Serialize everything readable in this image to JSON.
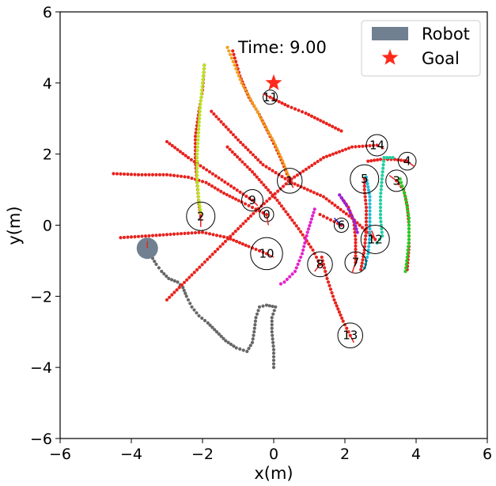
{
  "chart_data": {
    "type": "scatter",
    "xlabel": "x(m)",
    "ylabel": "y(m)",
    "xlim": [
      -6,
      6
    ],
    "ylim": [
      -6,
      6
    ],
    "xticks": [
      -6,
      -4,
      -2,
      0,
      2,
      4,
      6
    ],
    "yticks": [
      -6,
      -4,
      -2,
      0,
      2,
      4,
      6
    ],
    "tick_labels_x": [
      "−6",
      "−4",
      "−2",
      "0",
      "2",
      "4",
      "6"
    ],
    "tick_labels_y": [
      "−6",
      "−4",
      "−2",
      "0",
      "2",
      "4",
      "6"
    ],
    "time_label": "Time: 9.00",
    "time_label_pos": [
      -1.0,
      5.0
    ],
    "legend": {
      "placement": "upper-right",
      "entries": [
        {
          "label": "Robot",
          "marker": "patch",
          "color": "#708090"
        },
        {
          "label": "Goal",
          "marker": "star",
          "color": "#ff2a1a"
        }
      ]
    },
    "goal": {
      "x": 0.0,
      "y": 4.0,
      "color": "#ff2a1a"
    },
    "robot": {
      "x": -3.55,
      "y": -0.65,
      "radius": 0.3,
      "color": "#708090",
      "heading": [
        0.0,
        0.2
      ],
      "path_color": "#666666",
      "path": [
        [
          0,
          -4
        ],
        [
          0,
          -3.5
        ],
        [
          -0.05,
          -3
        ],
        [
          -0.05,
          -2.6
        ],
        [
          0.05,
          -2.3
        ],
        [
          -0.2,
          -2.25
        ],
        [
          -0.4,
          -2.3
        ],
        [
          -0.5,
          -2.6
        ],
        [
          -0.55,
          -3.0
        ],
        [
          -0.6,
          -3.3
        ],
        [
          -0.75,
          -3.55
        ],
        [
          -1.05,
          -3.45
        ],
        [
          -1.35,
          -3.25
        ],
        [
          -1.6,
          -3.0
        ],
        [
          -1.85,
          -2.75
        ],
        [
          -2.1,
          -2.55
        ],
        [
          -2.3,
          -2.3
        ],
        [
          -2.45,
          -2.0
        ],
        [
          -2.55,
          -1.75
        ],
        [
          -2.7,
          -1.6
        ],
        [
          -2.95,
          -1.5
        ],
        [
          -3.15,
          -1.3
        ],
        [
          -3.3,
          -1.1
        ],
        [
          -3.45,
          -0.85
        ]
      ]
    },
    "agents": [
      {
        "id": "0",
        "x": -0.2,
        "y": 0.3,
        "radius": 0.2,
        "color": "#e8231e",
        "heading": [
          0.05,
          -0.3
        ],
        "path": [
          [
            -4.5,
            1.45
          ],
          [
            -3.8,
            1.42
          ],
          [
            -3.0,
            1.42
          ],
          [
            -2.4,
            1.35
          ],
          [
            -1.9,
            1.2
          ],
          [
            -1.4,
            0.9
          ],
          [
            -0.9,
            0.65
          ],
          [
            -0.5,
            0.45
          ],
          [
            -0.2,
            0.3
          ]
        ]
      },
      {
        "id": "1",
        "x": 0.45,
        "y": 1.25,
        "radius": 0.35,
        "color": "#e8231e",
        "heading": [
          0.1,
          -0.2
        ],
        "path": [
          [
            -1.15,
            4.9
          ],
          [
            -0.95,
            4.2
          ],
          [
            -0.7,
            3.6
          ],
          [
            -0.4,
            3.1
          ],
          [
            -0.15,
            2.6
          ],
          [
            0.05,
            2.2
          ],
          [
            0.25,
            1.75
          ],
          [
            0.45,
            1.25
          ]
        ]
      },
      {
        "id": "2",
        "x": -2.05,
        "y": 0.25,
        "radius": 0.4,
        "color": "#e8231e",
        "heading": [
          0.0,
          -0.3
        ],
        "path": [
          [
            -1.95,
            4.5
          ],
          [
            -2.0,
            3.8
          ],
          [
            -2.1,
            3.2
          ],
          [
            -2.2,
            2.5
          ],
          [
            -2.2,
            1.8
          ],
          [
            -2.15,
            1.2
          ],
          [
            -2.1,
            0.6
          ],
          [
            -2.05,
            0.25
          ]
        ]
      },
      {
        "id": "3",
        "x": 3.45,
        "y": 1.25,
        "radius": 0.3,
        "color": "#e8231e",
        "heading": [
          -0.2,
          0.15
        ],
        "path": [
          [
            3.75,
            -1.25
          ],
          [
            3.8,
            -0.6
          ],
          [
            3.8,
            0.0
          ],
          [
            3.75,
            0.55
          ],
          [
            3.65,
            1.0
          ],
          [
            3.45,
            1.25
          ]
        ]
      },
      {
        "id": "4",
        "x": 3.75,
        "y": 1.8,
        "radius": 0.25,
        "color": "#e8231e",
        "heading": [
          0.2,
          -0.15
        ],
        "path": [
          [
            2.65,
            1.8
          ],
          [
            3.0,
            1.85
          ],
          [
            3.4,
            1.85
          ],
          [
            3.75,
            1.8
          ]
        ]
      },
      {
        "id": "5",
        "x": 2.55,
        "y": 1.3,
        "radius": 0.4,
        "color": "#e8231e",
        "heading": [
          0.0,
          -0.25
        ],
        "path": [
          [
            2.45,
            -1.25
          ],
          [
            2.55,
            -0.7
          ],
          [
            2.6,
            -0.1
          ],
          [
            2.6,
            0.5
          ],
          [
            2.55,
            1.0
          ],
          [
            2.55,
            1.3
          ]
        ]
      },
      {
        "id": "6",
        "x": 1.9,
        "y": 0.0,
        "radius": 0.2,
        "color": "#1a1acc",
        "heading": [
          -0.2,
          0.2
        ],
        "path": [
          [
            1.3,
            0.3
          ],
          [
            1.6,
            0.15
          ],
          [
            1.9,
            0.0
          ]
        ]
      },
      {
        "id": "7",
        "x": 2.3,
        "y": -1.05,
        "radius": 0.3,
        "color": "#e8231e",
        "heading": [
          -0.1,
          -0.3
        ],
        "path": [
          [
            1.85,
            0.85
          ],
          [
            2.1,
            0.5
          ],
          [
            2.25,
            0.1
          ],
          [
            2.3,
            -0.4
          ],
          [
            2.3,
            -1.05
          ]
        ]
      },
      {
        "id": "8",
        "x": 1.3,
        "y": -1.1,
        "radius": 0.35,
        "color": "#e8231e",
        "heading": [
          -0.15,
          -0.2
        ],
        "path": [
          [
            -1.3,
            2.2
          ],
          [
            -0.6,
            1.5
          ],
          [
            0.1,
            0.7
          ],
          [
            0.7,
            -0.1
          ],
          [
            1.1,
            -0.7
          ],
          [
            1.3,
            -1.1
          ]
        ]
      },
      {
        "id": "9",
        "x": -0.6,
        "y": 0.7,
        "radius": 0.3,
        "color": "#e8231e",
        "heading": [
          0.15,
          -0.15
        ],
        "path": [
          [
            -3.0,
            2.35
          ],
          [
            -2.4,
            1.9
          ],
          [
            -1.8,
            1.5
          ],
          [
            -1.2,
            1.1
          ],
          [
            -0.6,
            0.7
          ]
        ]
      },
      {
        "id": "10",
        "x": -0.2,
        "y": -0.8,
        "radius": 0.45,
        "color": "#e8231e",
        "heading": [
          0.2,
          -0.1
        ],
        "path": [
          [
            -4.3,
            -0.35
          ],
          [
            -3.5,
            -0.3
          ],
          [
            -2.8,
            -0.25
          ],
          [
            -2.0,
            -0.2
          ],
          [
            -1.3,
            -0.35
          ],
          [
            -0.7,
            -0.6
          ],
          [
            -0.2,
            -0.8
          ]
        ]
      },
      {
        "id": "11",
        "x": -0.1,
        "y": 3.6,
        "radius": 0.2,
        "color": "#e8231e",
        "heading": [
          -0.2,
          0.1
        ],
        "path": [
          [
            1.9,
            2.65
          ],
          [
            1.4,
            2.9
          ],
          [
            0.9,
            3.15
          ],
          [
            0.4,
            3.35
          ],
          [
            -0.1,
            3.6
          ]
        ]
      },
      {
        "id": "12",
        "x": 2.85,
        "y": -0.4,
        "radius": 0.4,
        "color": "#e8231e",
        "heading": [
          -0.1,
          0.25
        ],
        "path": [
          [
            -1.75,
            3.2
          ],
          [
            -1.0,
            2.4
          ],
          [
            -0.3,
            1.7
          ],
          [
            0.5,
            1.2
          ],
          [
            1.4,
            0.8
          ],
          [
            2.2,
            0.2
          ],
          [
            2.85,
            -0.4
          ]
        ]
      },
      {
        "id": "13",
        "x": 2.15,
        "y": -3.1,
        "radius": 0.35,
        "color": "#e8231e",
        "heading": [
          0.1,
          -0.2
        ],
        "path": [
          [
            1.35,
            -0.9
          ],
          [
            1.5,
            -1.5
          ],
          [
            1.7,
            -2.1
          ],
          [
            1.95,
            -2.7
          ],
          [
            2.15,
            -3.1
          ]
        ]
      },
      {
        "id": "14",
        "x": 2.9,
        "y": 2.25,
        "radius": 0.3,
        "color": "#e8231e",
        "heading": [
          0.2,
          -0.1
        ],
        "path": [
          [
            -3.0,
            -2.1
          ],
          [
            -2.3,
            -1.4
          ],
          [
            -1.5,
            -0.6
          ],
          [
            -0.5,
            0.4
          ],
          [
            0.5,
            1.3
          ],
          [
            1.4,
            1.9
          ],
          [
            2.2,
            2.2
          ],
          [
            2.9,
            2.25
          ]
        ]
      }
    ],
    "colored_trails": [
      {
        "color": "#b5e61d",
        "path": [
          [
            -1.95,
            4.5
          ],
          [
            -2.0,
            4.0
          ],
          [
            -2.05,
            3.5
          ],
          [
            -2.1,
            2.8
          ],
          [
            -2.15,
            2.0
          ],
          [
            -2.15,
            1.3
          ],
          [
            -2.1,
            0.7
          ],
          [
            -2.05,
            0.35
          ]
        ]
      },
      {
        "color": "#f0a21e",
        "path": [
          [
            -1.3,
            5.0
          ],
          [
            -1.1,
            4.5
          ],
          [
            -0.9,
            4.0
          ],
          [
            -0.6,
            3.45
          ],
          [
            -0.3,
            2.9
          ],
          [
            0.0,
            2.35
          ],
          [
            0.25,
            1.8
          ],
          [
            0.4,
            1.4
          ]
        ]
      },
      {
        "color": "#22cfa0",
        "path": [
          [
            3.35,
            1.9
          ],
          [
            3.1,
            1.9
          ],
          [
            3.05,
            1.4
          ],
          [
            3.0,
            0.8
          ],
          [
            3.0,
            0.2
          ],
          [
            3.05,
            -0.3
          ],
          [
            2.9,
            -0.5
          ]
        ]
      },
      {
        "color": "#1ebcdc",
        "path": [
          [
            2.6,
            1.35
          ],
          [
            2.7,
            0.8
          ],
          [
            2.7,
            0.3
          ],
          [
            2.7,
            -0.3
          ],
          [
            2.65,
            -0.8
          ],
          [
            2.55,
            -1.2
          ]
        ]
      },
      {
        "color": "#22cc22",
        "path": [
          [
            3.55,
            1.3
          ],
          [
            3.7,
            0.8
          ],
          [
            3.8,
            0.2
          ],
          [
            3.8,
            -0.4
          ],
          [
            3.75,
            -0.9
          ],
          [
            3.7,
            -1.3
          ]
        ]
      },
      {
        "color": "#e322cc",
        "path": [
          [
            1.15,
            0.45
          ],
          [
            0.95,
            -0.2
          ],
          [
            0.8,
            -0.8
          ],
          [
            0.6,
            -1.3
          ],
          [
            0.3,
            -1.6
          ],
          [
            0.2,
            -1.65
          ]
        ]
      },
      {
        "color": "#9922dd",
        "path": [
          [
            1.85,
            0.85
          ],
          [
            2.05,
            0.55
          ],
          [
            2.25,
            0.15
          ],
          [
            2.35,
            -0.2
          ]
        ]
      }
    ]
  }
}
